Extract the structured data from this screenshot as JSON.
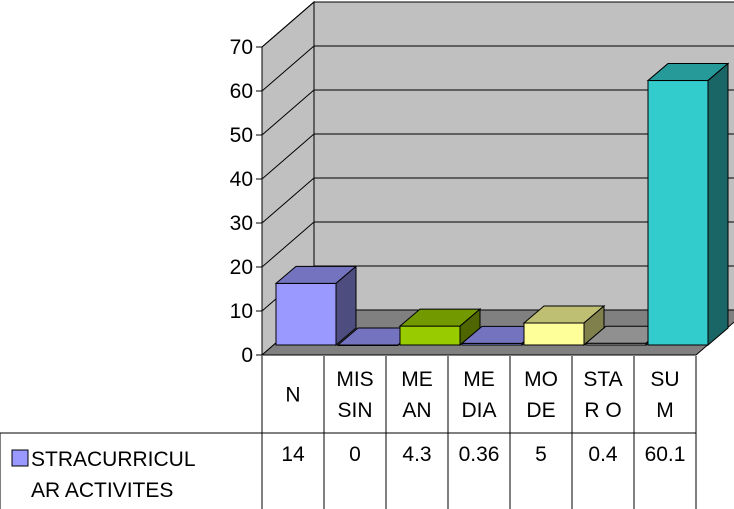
{
  "chart_data": {
    "type": "bar",
    "style": "3d-clustered-bar-with-data-table",
    "categories": [
      [
        "N"
      ],
      [
        "MIS",
        "SIN"
      ],
      [
        "ME",
        "AN"
      ],
      [
        "ME",
        "DIA"
      ],
      [
        "MO",
        "DE"
      ],
      [
        "STA",
        "R O"
      ],
      [
        "SU",
        "M"
      ]
    ],
    "series": [
      {
        "name_lines": [
          "STRACURRICUL",
          "AR ACTIVITES"
        ],
        "values": [
          14,
          0,
          4.3,
          0.36,
          5,
          0.4,
          60.1
        ],
        "value_labels": [
          "14",
          "0",
          "4.3",
          "0.36",
          "5",
          "0.4",
          "60.1"
        ],
        "bar_colors": [
          "#9999ff",
          "#9999ff",
          "#99cc00",
          "#9999ff",
          "#ffff99",
          "#c0c0c0",
          "#33cccc"
        ]
      }
    ],
    "ylim": [
      0,
      70
    ],
    "yticks": [
      "0",
      "10",
      "20",
      "30",
      "40",
      "50",
      "60",
      "70"
    ],
    "grid": true,
    "legend_key_color": "#9999ff",
    "wall_color": "#c0c0c0",
    "floor_color": "#808080"
  }
}
